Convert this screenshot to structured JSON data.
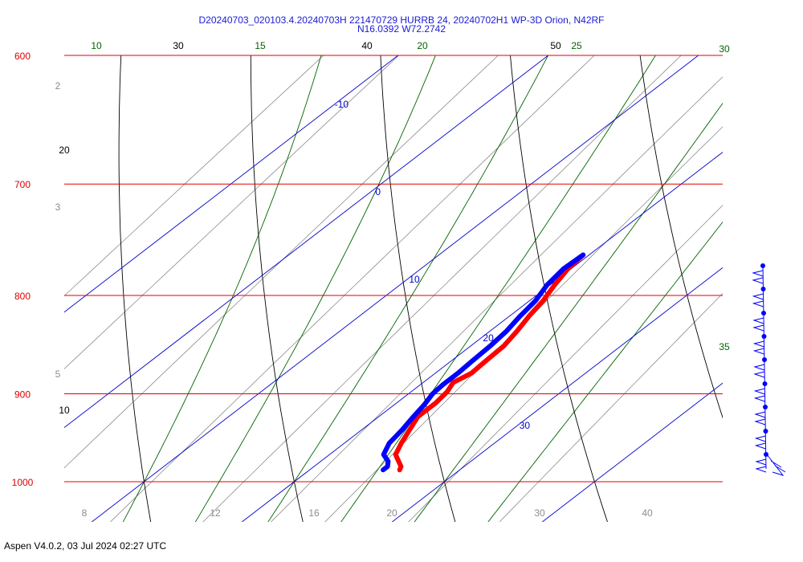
{
  "header": {
    "title_line1": "D20240703_020103.4.20240703H 221470729 HURRB 24, 20240702H1 WP-3D Orion, N42RF",
    "title_line2": "N16.0392 W72.2742"
  },
  "footer": {
    "text": "Aspen V4.0.2, 03 Jul 2024  02:27 UTC"
  },
  "colors": {
    "isobar": "#e00000",
    "isotherm": "#0000cc",
    "dry_adiabat": "#000000",
    "moist_adiabat": "#006400",
    "mixing_ratio": "#8c8c8c",
    "temperature_trace": "#ff0000",
    "dewpoint_trace": "#0000ff",
    "wind_barb": "#0000ff"
  },
  "chart_data": {
    "type": "skew-t",
    "ylabel": "",
    "xlabel": "",
    "pressure_range": [
      1050,
      600
    ],
    "temperature_range": [
      6,
      44
    ],
    "isobars": [
      {
        "p": 600,
        "label": "600"
      },
      {
        "p": 700,
        "label": "700"
      },
      {
        "p": 800,
        "label": "800"
      },
      {
        "p": 900,
        "label": "900"
      },
      {
        "p": 1000,
        "label": "1000"
      }
    ],
    "isotherms": [
      {
        "t": -10,
        "label": "-10"
      },
      {
        "t": 0,
        "label": "0"
      },
      {
        "t": 10,
        "label": "10"
      },
      {
        "t": 20,
        "label": "20"
      },
      {
        "t": 30,
        "label": "30"
      },
      {
        "t": 40,
        "label": ""
      }
    ],
    "bottom_axis_labels": [
      "8",
      "12",
      "16",
      "20",
      "30",
      "40"
    ],
    "dry_adiabats": [
      {
        "theta": 10,
        "label": "10"
      },
      {
        "theta": 20,
        "label": "20"
      },
      {
        "theta": 30,
        "label": "30"
      },
      {
        "theta": 40,
        "label": "40"
      },
      {
        "theta": 50,
        "label": "50"
      }
    ],
    "moist_adiabats": [
      {
        "theta_w": 10,
        "label": "10"
      },
      {
        "theta_w": 15,
        "label": "15"
      },
      {
        "theta_w": 20,
        "label": "20"
      },
      {
        "theta_w": 25,
        "label": "25"
      },
      {
        "theta_w": 30,
        "label": "30"
      },
      {
        "theta_w": 35,
        "label": "35"
      }
    ],
    "mixing_ratio_labels": [
      {
        "w": 2,
        "label": "2"
      },
      {
        "w": 3,
        "label": "3"
      },
      {
        "w": 5,
        "label": "5"
      }
    ],
    "temperature_profile": [
      {
        "p": 762,
        "t": 19.6
      },
      {
        "p": 775,
        "t": 19.8
      },
      {
        "p": 790,
        "t": 20.3
      },
      {
        "p": 805,
        "t": 20.9
      },
      {
        "p": 820,
        "t": 21.3
      },
      {
        "p": 835,
        "t": 21.8
      },
      {
        "p": 850,
        "t": 22.2
      },
      {
        "p": 865,
        "t": 22.3
      },
      {
        "p": 878,
        "t": 22.4
      },
      {
        "p": 888,
        "t": 22.0
      },
      {
        "p": 898,
        "t": 22.4
      },
      {
        "p": 910,
        "t": 22.6
      },
      {
        "p": 925,
        "t": 22.6
      },
      {
        "p": 940,
        "t": 23.2
      },
      {
        "p": 955,
        "t": 23.8
      },
      {
        "p": 968,
        "t": 24.4
      },
      {
        "p": 976,
        "t": 25.2
      },
      {
        "p": 982,
        "t": 25.8
      },
      {
        "p": 986,
        "t": 26.0
      }
    ],
    "dewpoint_profile": [
      {
        "p": 762,
        "t": 19.6
      },
      {
        "p": 775,
        "t": 19.5
      },
      {
        "p": 790,
        "t": 19.8
      },
      {
        "p": 805,
        "t": 20.4
      },
      {
        "p": 820,
        "t": 20.7
      },
      {
        "p": 835,
        "t": 21.1
      },
      {
        "p": 850,
        "t": 21.3
      },
      {
        "p": 865,
        "t": 21.4
      },
      {
        "p": 878,
        "t": 21.5
      },
      {
        "p": 890,
        "t": 21.5
      },
      {
        "p": 900,
        "t": 21.6
      },
      {
        "p": 912,
        "t": 22.0
      },
      {
        "p": 925,
        "t": 22.3
      },
      {
        "p": 940,
        "t": 22.7
      },
      {
        "p": 955,
        "t": 23.0
      },
      {
        "p": 968,
        "t": 23.6
      },
      {
        "p": 976,
        "t": 24.5
      },
      {
        "p": 982,
        "t": 24.9
      },
      {
        "p": 986,
        "t": 24.9
      }
    ],
    "wind_profile": [
      {
        "p": 780,
        "direction": 100,
        "speed_kt": 25
      },
      {
        "p": 805,
        "direction": 100,
        "speed_kt": 25
      },
      {
        "p": 830,
        "direction": 100,
        "speed_kt": 25
      },
      {
        "p": 855,
        "direction": 100,
        "speed_kt": 25
      },
      {
        "p": 880,
        "direction": 100,
        "speed_kt": 25
      },
      {
        "p": 905,
        "direction": 100,
        "speed_kt": 25
      },
      {
        "p": 930,
        "direction": 100,
        "speed_kt": 25
      },
      {
        "p": 955,
        "direction": 105,
        "speed_kt": 25
      },
      {
        "p": 975,
        "direction": 110,
        "speed_kt": 20
      }
    ]
  }
}
